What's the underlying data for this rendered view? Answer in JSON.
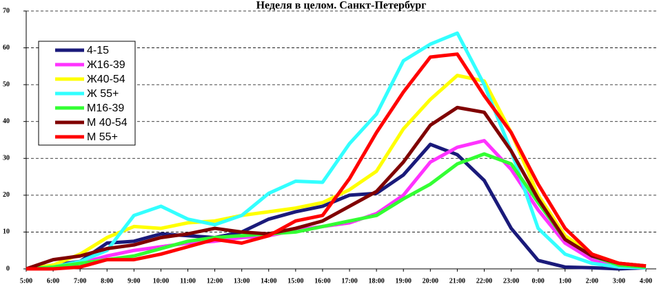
{
  "chart_data": {
    "type": "line",
    "title": "Неделя в целом. Санкт-Петербург",
    "categories": [
      "5:00",
      "6:00",
      "7:00",
      "8:00",
      "9:00",
      "10:00",
      "11:00",
      "12:00",
      "13:00",
      "14:00",
      "15:00",
      "16:00",
      "17:00",
      "18:00",
      "19:00",
      "20:00",
      "21:00",
      "22:00",
      "23:00",
      "0:00",
      "1:00",
      "2:00",
      "3:00",
      "4:00"
    ],
    "ylim": [
      0,
      70
    ],
    "yticks": [
      0,
      10,
      20,
      30,
      40,
      50,
      60,
      70
    ],
    "grid": true,
    "legend": "upper-left",
    "series": [
      {
        "name": "4-15",
        "color": "#1a1a7a",
        "values": [
          0,
          1,
          2,
          7,
          7.5,
          9.5,
          9,
          8.5,
          10,
          13.5,
          15.5,
          17,
          20,
          20.5,
          25.5,
          33.8,
          31,
          24,
          11,
          2.3,
          0.5,
          0.3,
          0,
          0.3
        ]
      },
      {
        "name": "Ж16-39",
        "color": "#ff33ff",
        "values": [
          0,
          0.5,
          1.5,
          3.5,
          5,
          6,
          7,
          7.5,
          8.5,
          9,
          10.5,
          11.5,
          12.5,
          15,
          20,
          29,
          33,
          34.8,
          27,
          16,
          7,
          2.5,
          0.5,
          0.3
        ]
      },
      {
        "name": "Ж40-54",
        "color": "#ffff00",
        "values": [
          0,
          1,
          4,
          8.5,
          11.5,
          11,
          12.5,
          13,
          14.5,
          15.5,
          16.5,
          18,
          21.5,
          26.5,
          38,
          46,
          52.5,
          51,
          37,
          20,
          9,
          4,
          1.5,
          0.8
        ]
      },
      {
        "name": "Ж 55+",
        "color": "#33ffff",
        "values": [
          0,
          0.5,
          2,
          5,
          14.5,
          17,
          13.5,
          12,
          14.5,
          20.5,
          23.8,
          23.5,
          34,
          42,
          56.5,
          61,
          64,
          50,
          32,
          11,
          4,
          1.5,
          0.5,
          0.3
        ]
      },
      {
        "name": "М16-39",
        "color": "#33ff33",
        "values": [
          0,
          0.5,
          1.5,
          2.5,
          3.5,
          5.5,
          7.5,
          8.5,
          9,
          9.5,
          10,
          11.5,
          13,
          14.5,
          19,
          23,
          28.5,
          31.2,
          28.5,
          18,
          8,
          3.5,
          1,
          0.5
        ]
      },
      {
        "name": "М 40-54",
        "color": "#800000",
        "values": [
          0,
          2.5,
          3.5,
          5.5,
          6.5,
          8.5,
          9.5,
          11,
          10,
          9.5,
          11,
          13,
          17,
          21,
          29,
          39,
          43.8,
          42.5,
          32,
          19,
          8,
          3.5,
          1.5,
          0.8
        ]
      },
      {
        "name": "М 55+",
        "color": "#ff0000",
        "values": [
          0,
          0,
          0.5,
          2.5,
          2.5,
          4,
          6,
          8,
          7,
          9,
          13,
          14.5,
          24.5,
          37,
          48,
          57.5,
          58.3,
          47,
          37,
          23,
          11,
          4,
          1.5,
          0.8
        ]
      }
    ]
  }
}
